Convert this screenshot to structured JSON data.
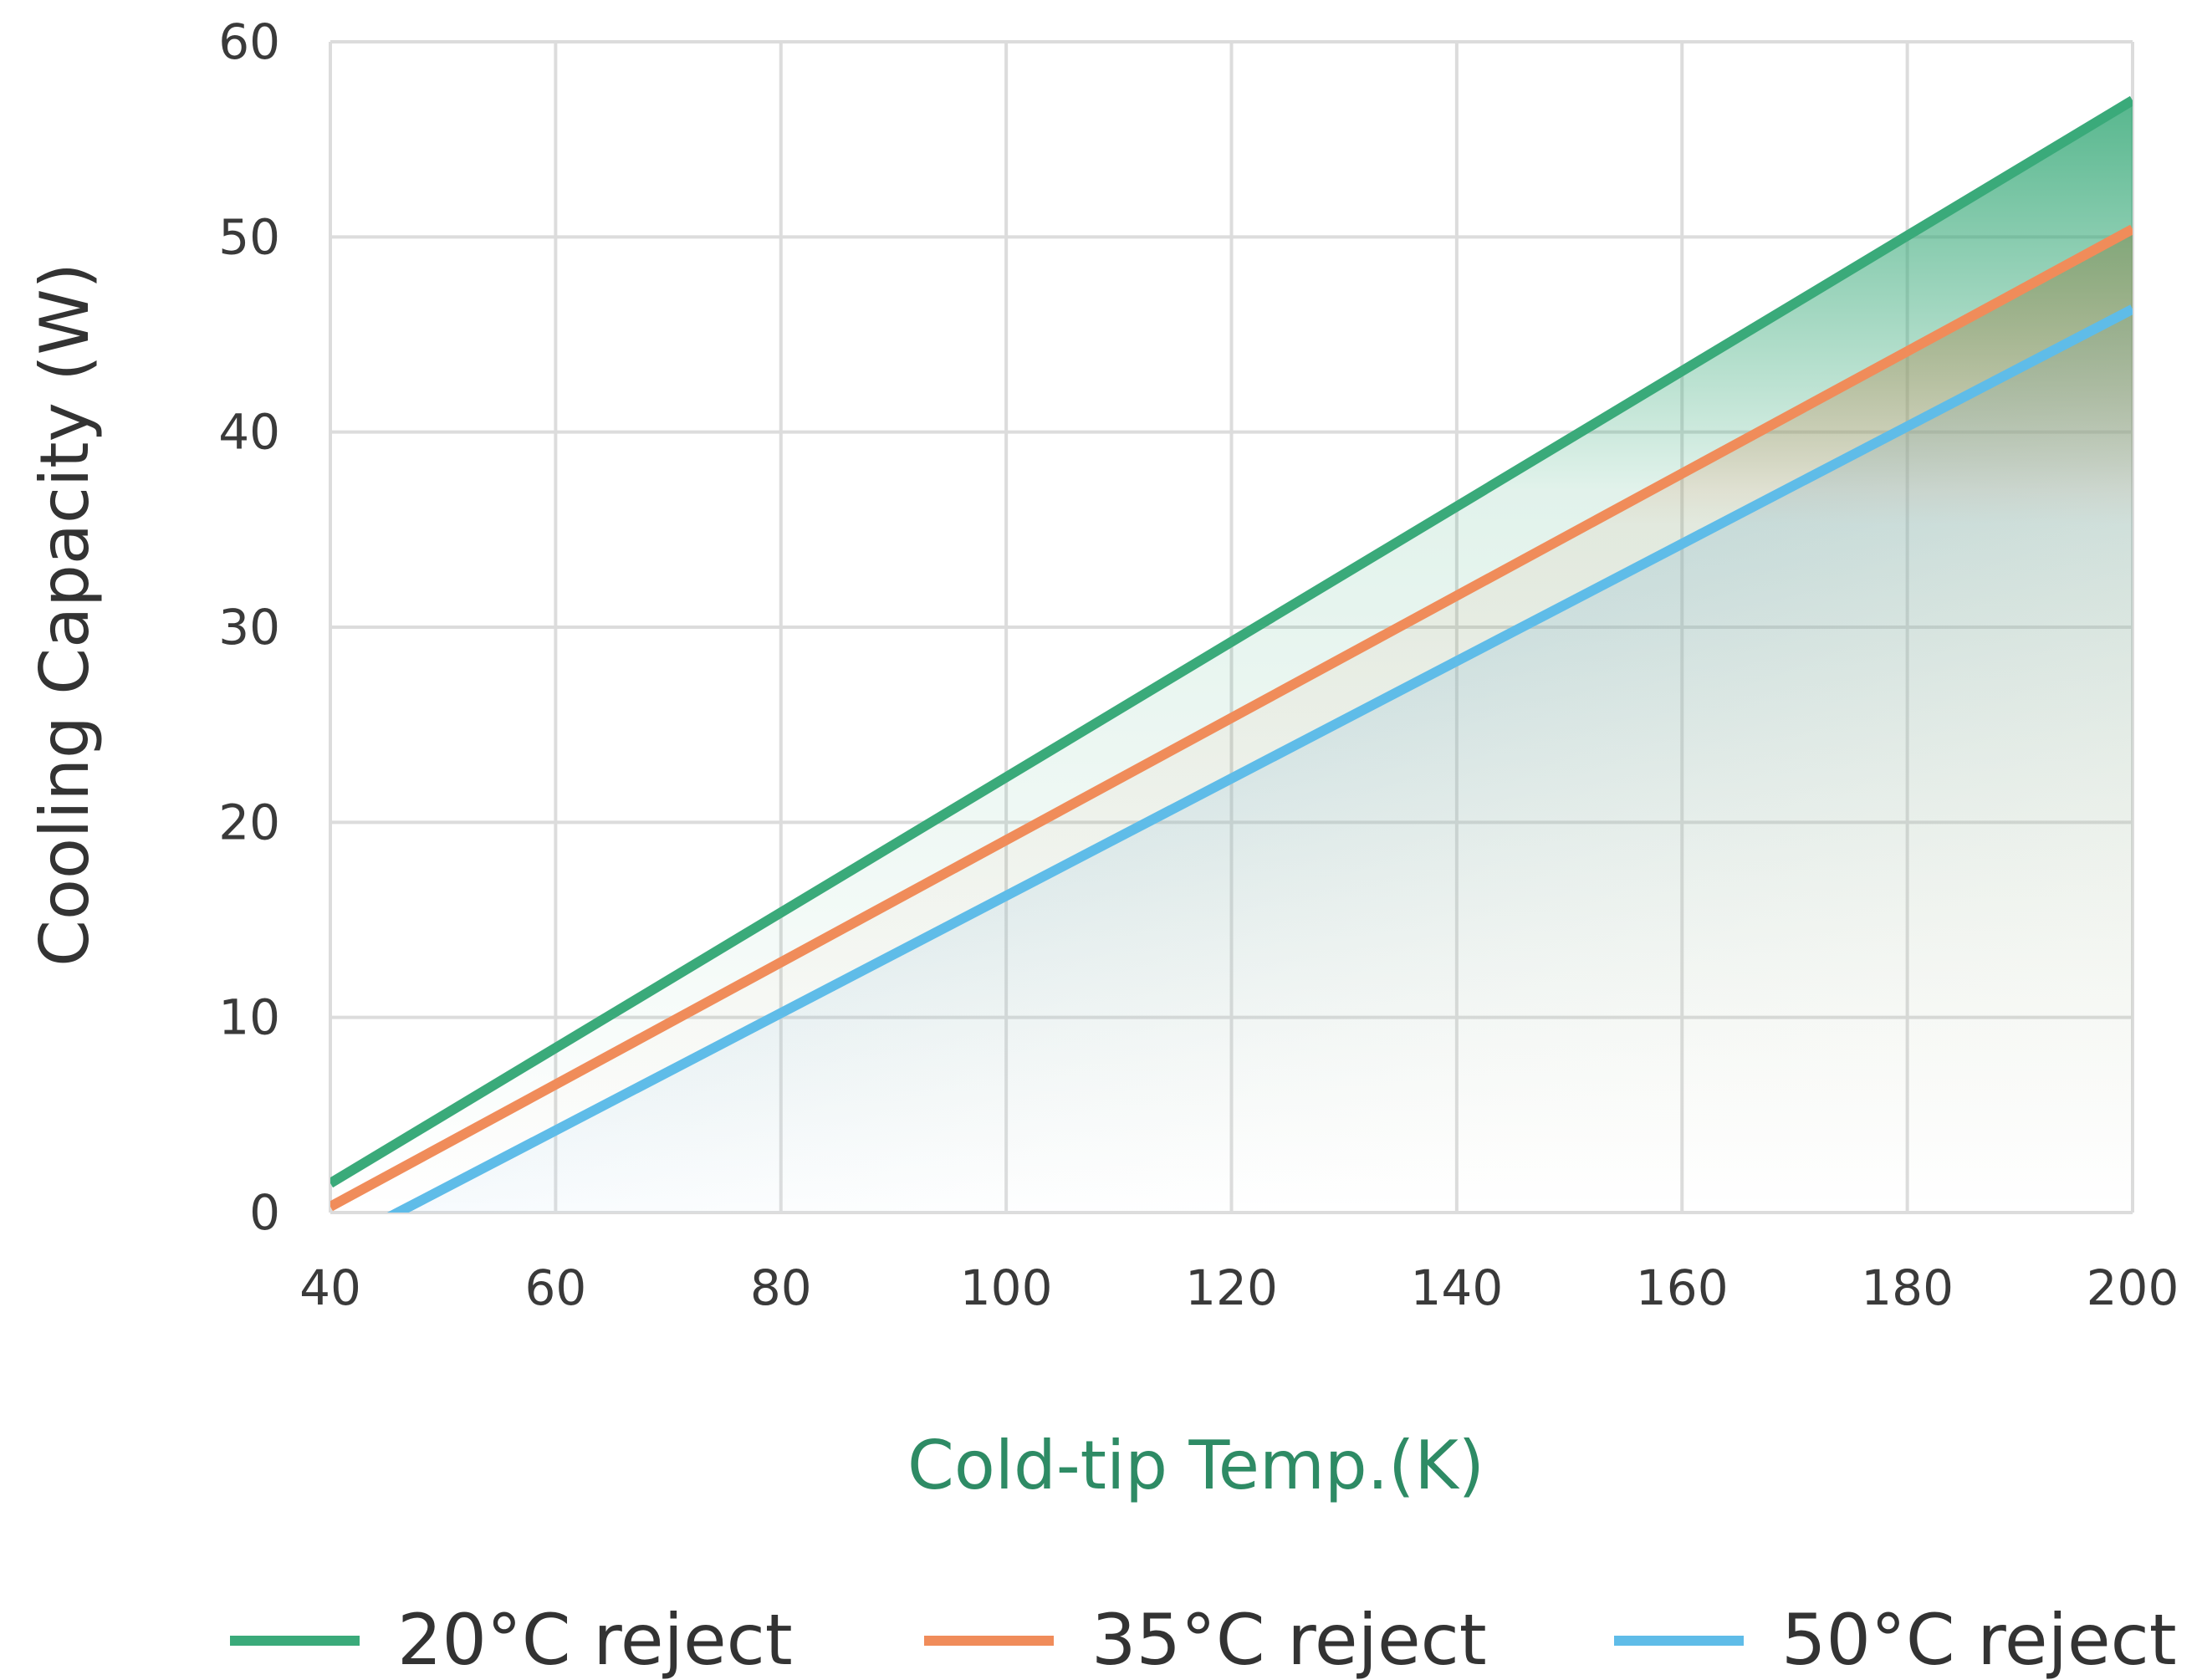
{
  "chart_data": {
    "type": "line",
    "title": "",
    "xlabel": "Cold-tip Temp.(K)",
    "ylabel": "Cooling Capacity (W)",
    "xlim": [
      40,
      200
    ],
    "ylim": [
      0,
      60
    ],
    "xticks": [
      40,
      60,
      80,
      100,
      120,
      140,
      160,
      180,
      200
    ],
    "yticks": [
      0,
      10,
      20,
      30,
      40,
      50,
      60
    ],
    "grid": true,
    "legend_position": "bottom",
    "area_fill": "gradient below each line",
    "series": [
      {
        "name": "20°C reject",
        "color": "#3aaa7a",
        "x": [
          40,
          200
        ],
        "y": [
          1.5,
          57.0
        ]
      },
      {
        "name": "35°C reject",
        "color": "#f08c5a",
        "x": [
          40,
          200
        ],
        "y": [
          0.3,
          50.4
        ]
      },
      {
        "name": "50°C reject",
        "color": "#5fbce8",
        "x": [
          40,
          46,
          200
        ],
        "y": [
          -1.8,
          0.0,
          46.3
        ]
      }
    ],
    "colors": {
      "grid": "#dcdcdc",
      "xlabel": "#2e8b65",
      "axis_text": "#3a3a3a"
    }
  }
}
